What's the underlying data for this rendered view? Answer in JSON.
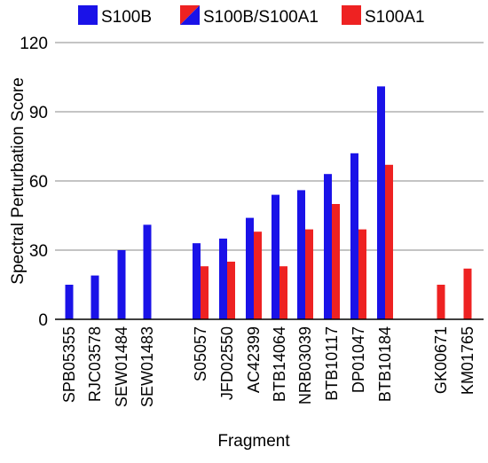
{
  "chart_data": {
    "type": "bar",
    "xlabel": "Fragment",
    "ylabel": "Spectral Perturbation Score",
    "ylim": [
      0,
      120
    ],
    "yticks": [
      0,
      30,
      60,
      90,
      120
    ],
    "grid": true,
    "legend_position": "top",
    "legend": [
      {
        "label": "S100B",
        "swatch": "solid",
        "colors": [
          "#1a12e8"
        ]
      },
      {
        "label": "S100B/S100A1",
        "swatch": "split",
        "colors": [
          "#1a12e8",
          "#ee2222"
        ]
      },
      {
        "label": "S100A1",
        "swatch": "solid",
        "colors": [
          "#ee2222"
        ]
      }
    ],
    "series": [
      {
        "name": "S100B",
        "color": "#1a12e8"
      },
      {
        "name": "S100A1",
        "color": "#ee2222"
      }
    ],
    "categories": [
      {
        "label": "SPB05355",
        "S100B": 15,
        "S100A1": null
      },
      {
        "label": "RJC03578",
        "S100B": 19,
        "S100A1": null
      },
      {
        "label": "SEW01484",
        "S100B": 30,
        "S100A1": null
      },
      {
        "label": "SEW01483",
        "S100B": 41,
        "S100A1": null
      },
      {
        "label": "S05057",
        "S100B": 33,
        "S100A1": 23
      },
      {
        "label": "JFD02550",
        "S100B": 35,
        "S100A1": 25
      },
      {
        "label": "AC42399",
        "S100B": 44,
        "S100A1": 38
      },
      {
        "label": "BTB14064",
        "S100B": 54,
        "S100A1": 23
      },
      {
        "label": "NRB03039",
        "S100B": 56,
        "S100A1": 39
      },
      {
        "label": "BTB10117",
        "S100B": 63,
        "S100A1": 50
      },
      {
        "label": "DP01047",
        "S100B": 72,
        "S100A1": 39
      },
      {
        "label": "BTB10184",
        "S100B": 101,
        "S100A1": 67
      },
      {
        "label": "GK00671",
        "S100B": null,
        "S100A1": 15
      },
      {
        "label": "KM01765",
        "S100B": null,
        "S100A1": 22
      }
    ]
  }
}
